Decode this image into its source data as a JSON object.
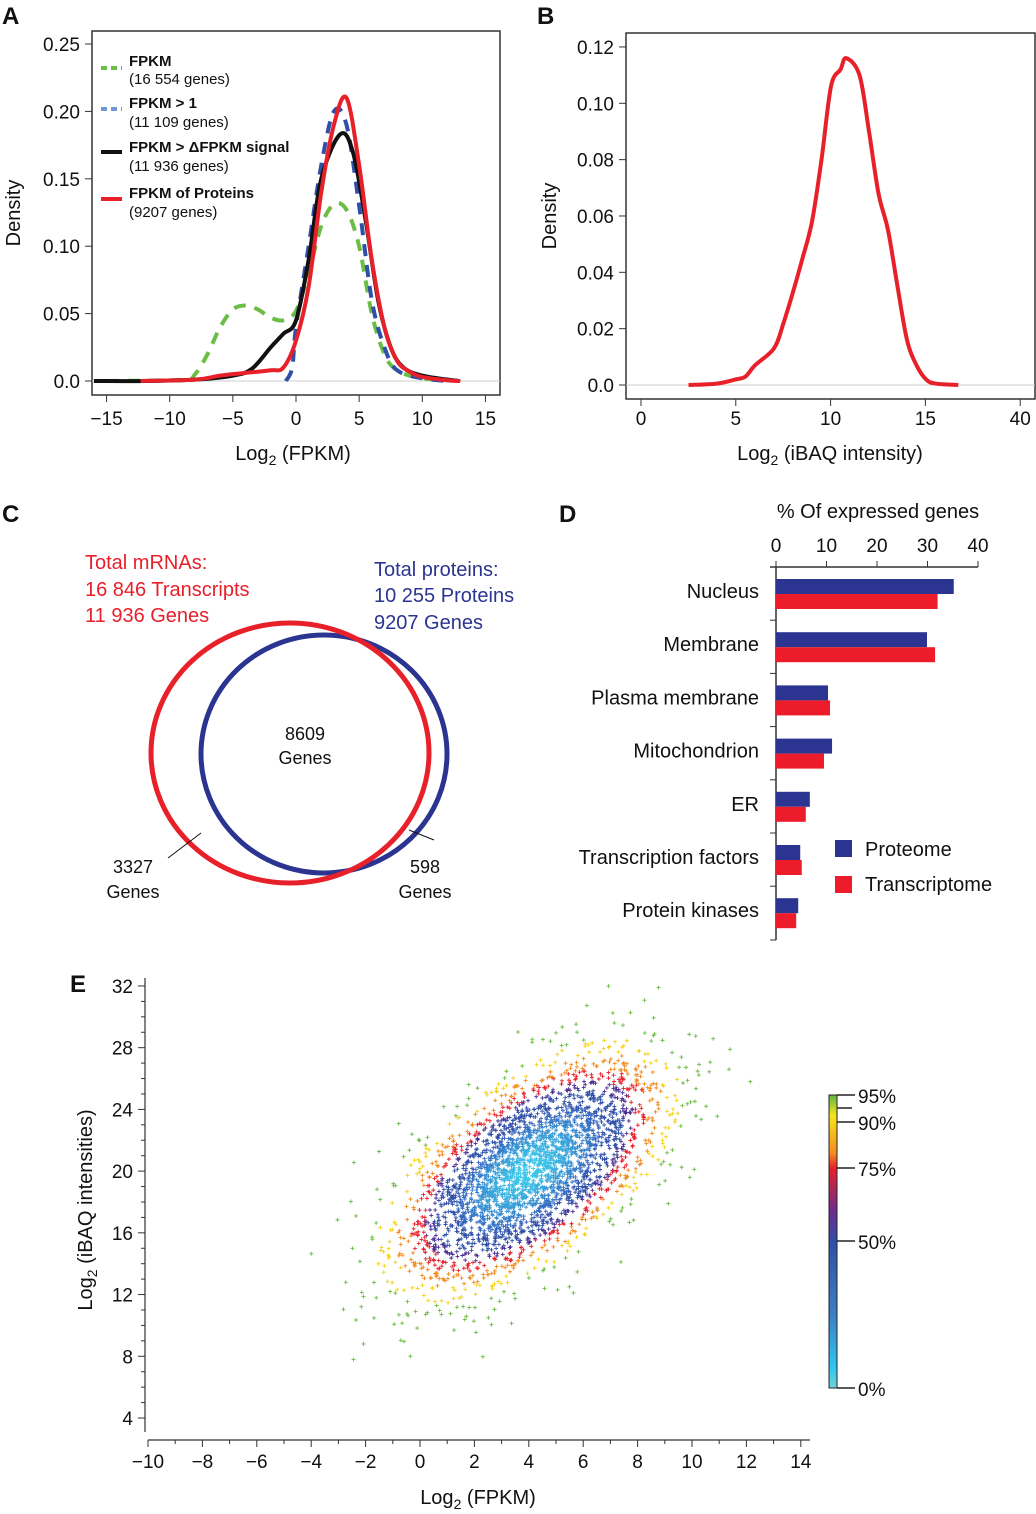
{
  "panels": {
    "a": "A",
    "b": "B",
    "c": "C",
    "d": "D",
    "e": "E"
  },
  "chart_data": [
    {
      "panel": "A",
      "type": "line",
      "xlabel_main": "Log",
      "xlabel_sub": "2",
      "xlabel_rest": " (FPKM)",
      "ylabel": "Density",
      "xlim": [
        -16.2,
        16.2
      ],
      "ylim": [
        -0.01,
        0.26
      ],
      "xticks": [
        -15,
        -10,
        -5,
        0,
        5,
        10,
        15
      ],
      "xtick_labels": [
        "−15",
        "−10",
        "−5",
        "0",
        "5",
        "10",
        "15"
      ],
      "yticks": [
        0,
        0.05,
        0.1,
        0.15,
        0.2,
        0.25
      ],
      "ytick_labels": [
        "0.0",
        "0.05",
        "0.10",
        "0.15",
        "0.20",
        "0.25"
      ],
      "legend_position": "top-left",
      "series": [
        {
          "name": "FPKM",
          "count": "(16 554 genes)",
          "color": "#6cbd45",
          "dash": true,
          "points": [
            [
              -15,
              0
            ],
            [
              -9,
              0.001
            ],
            [
              -8,
              0.005
            ],
            [
              -7,
              0.02
            ],
            [
              -6,
              0.04
            ],
            [
              -5,
              0.053
            ],
            [
              -4,
              0.056
            ],
            [
              -3,
              0.053
            ],
            [
              -2,
              0.047
            ],
            [
              -1,
              0.045
            ],
            [
              0,
              0.052
            ],
            [
              1,
              0.08
            ],
            [
              2,
              0.115
            ],
            [
              3,
              0.131
            ],
            [
              4,
              0.127
            ],
            [
              5,
              0.1
            ],
            [
              6,
              0.05
            ],
            [
              7,
              0.02
            ],
            [
              8,
              0.008
            ],
            [
              10,
              0.002
            ],
            [
              13.5,
              0
            ]
          ]
        },
        {
          "name": "FPKM > 1",
          "count": "(11 109 genes)",
          "color": "#2f4fa8",
          "legend_color": "#6f9ad8",
          "dash": true,
          "points": [
            [
              -0.8,
              0
            ],
            [
              -0.3,
              0.01
            ],
            [
              0,
              0.04
            ],
            [
              1,
              0.1
            ],
            [
              2,
              0.16
            ],
            [
              3,
              0.2
            ],
            [
              4,
              0.19
            ],
            [
              5,
              0.13
            ],
            [
              6,
              0.06
            ],
            [
              7,
              0.025
            ],
            [
              8,
              0.008
            ],
            [
              10,
              0.002
            ],
            [
              12,
              0
            ]
          ]
        },
        {
          "name": "FPKM > ΔFPKM signal",
          "count": "(11 936 genes)",
          "color": "#111111",
          "dash": false,
          "points": [
            [
              -16,
              0
            ],
            [
              -12,
              0
            ],
            [
              -8,
              0.001
            ],
            [
              -5,
              0.004
            ],
            [
              -3.5,
              0.009
            ],
            [
              -2,
              0.025
            ],
            [
              -1,
              0.035
            ],
            [
              0,
              0.045
            ],
            [
              1,
              0.09
            ],
            [
              2,
              0.15
            ],
            [
              3.5,
              0.183
            ],
            [
              4.5,
              0.17
            ],
            [
              5.5,
              0.12
            ],
            [
              6.5,
              0.06
            ],
            [
              7.5,
              0.025
            ],
            [
              8.5,
              0.01
            ],
            [
              10,
              0.004
            ],
            [
              12,
              0.001
            ],
            [
              13,
              0
            ]
          ]
        },
        {
          "name": "FPKM of Proteins",
          "count": "(9207 genes)",
          "color": "#e8202a",
          "dash": false,
          "points": [
            [
              -12.3,
              0
            ],
            [
              -8,
              0.001
            ],
            [
              -6,
              0.004
            ],
            [
              -4,
              0.006
            ],
            [
              -2,
              0.008
            ],
            [
              -1,
              0.01
            ],
            [
              0,
              0.03
            ],
            [
              1,
              0.07
            ],
            [
              2,
              0.14
            ],
            [
              3,
              0.19
            ],
            [
              4,
              0.21
            ],
            [
              5,
              0.16
            ],
            [
              6,
              0.09
            ],
            [
              7,
              0.04
            ],
            [
              8,
              0.015
            ],
            [
              9,
              0.007
            ],
            [
              10,
              0.003
            ],
            [
              12,
              0.0005
            ],
            [
              13,
              0
            ]
          ]
        }
      ]
    },
    {
      "panel": "B",
      "type": "line",
      "xlabel_main": "Log",
      "xlabel_sub": "2",
      "xlabel_rest": " (iBAQ intensity)",
      "ylabel": "Density",
      "xtick_labels": [
        "0",
        "5",
        "10",
        "15",
        "40"
      ],
      "ylim": [
        -0.005,
        0.125
      ],
      "yticks": [
        0,
        0.02,
        0.04,
        0.06,
        0.08,
        0.1,
        0.12
      ],
      "ytick_labels": [
        "0.0",
        "0.02",
        "0.04",
        "0.06",
        "0.08",
        "0.10",
        "0.12"
      ],
      "series": [
        {
          "color": "#e8202a",
          "points": [
            [
              2.5,
              0
            ],
            [
              4,
              0.0005
            ],
            [
              5,
              0.002
            ],
            [
              5.5,
              0.003
            ],
            [
              6,
              0.007
            ],
            [
              7,
              0.013
            ],
            [
              7.5,
              0.022
            ],
            [
              8,
              0.033
            ],
            [
              8.5,
              0.045
            ],
            [
              9,
              0.058
            ],
            [
              9.5,
              0.08
            ],
            [
              10,
              0.106
            ],
            [
              10.5,
              0.112
            ],
            [
              10.8,
              0.116
            ],
            [
              11.5,
              0.11
            ],
            [
              12,
              0.09
            ],
            [
              12.5,
              0.068
            ],
            [
              13,
              0.055
            ],
            [
              13.5,
              0.035
            ],
            [
              14,
              0.016
            ],
            [
              14.5,
              0.007
            ],
            [
              15,
              0.002
            ],
            [
              15.5,
              0.0005
            ],
            [
              16.7,
              0
            ]
          ]
        }
      ]
    },
    {
      "panel": "C",
      "type": "venn",
      "left": {
        "lines": [
          "Total mRNAs:",
          "16 846 Transcripts",
          "11 936 Genes"
        ],
        "color": "#e8202a"
      },
      "right": {
        "lines": [
          "Total proteins:",
          "10 255 Proteins",
          "9207 Genes"
        ],
        "color": "#2b3591"
      },
      "overlap": [
        "8609",
        "Genes"
      ],
      "left_only": [
        "3327",
        "Genes"
      ],
      "right_only": [
        "598",
        "Genes"
      ]
    },
    {
      "panel": "D",
      "type": "bar",
      "orientation": "horizontal",
      "title": "% Of expressed genes",
      "xticks": [
        0,
        10,
        20,
        30,
        40
      ],
      "xlim": [
        0,
        40
      ],
      "legend_position": "bottom-right",
      "categories": [
        "Nucleus",
        "Membrane",
        "Plasma membrane",
        "Mitochondrion",
        "ER",
        "Transcription factors",
        "Protein kinases"
      ],
      "series": [
        {
          "name": "Proteome",
          "color": "#2b3591",
          "values": [
            35.2,
            29.9,
            10.3,
            11.1,
            6.7,
            4.8,
            4.4
          ]
        },
        {
          "name": "Transcriptome",
          "color": "#ec1c2a",
          "values": [
            32,
            31.5,
            10.7,
            9.5,
            5.9,
            5.1,
            4.0
          ]
        }
      ]
    },
    {
      "panel": "E",
      "type": "scatter",
      "xlabel_main": "Log",
      "xlabel_sub": "2",
      "xlabel_rest": " (FPKM)",
      "ylabel_main": "Log",
      "ylabel_sub": "2",
      "ylabel_rest": " (iBAQ intensities)",
      "xlim": [
        -10,
        14
      ],
      "ylim": [
        4,
        32
      ],
      "xticks": [
        -10,
        -8,
        -6,
        -4,
        -2,
        0,
        2,
        4,
        6,
        8,
        10,
        12,
        14
      ],
      "yticks": [
        4,
        8,
        12,
        16,
        20,
        24,
        28,
        32
      ],
      "density_center": [
        4,
        20
      ],
      "colorbar": {
        "labels": [
          "95%",
          "90%",
          "75%",
          "50%",
          "0%"
        ],
        "levels": [
          95,
          90,
          75,
          50,
          0
        ],
        "colors": [
          "#5fb646",
          "#f5e61a",
          "#f58a1f",
          "#e8202a",
          "#6a2c91",
          "#2f4fa8",
          "#3c7fc4",
          "#2cc7ef",
          "#6fd2d8"
        ]
      }
    }
  ]
}
